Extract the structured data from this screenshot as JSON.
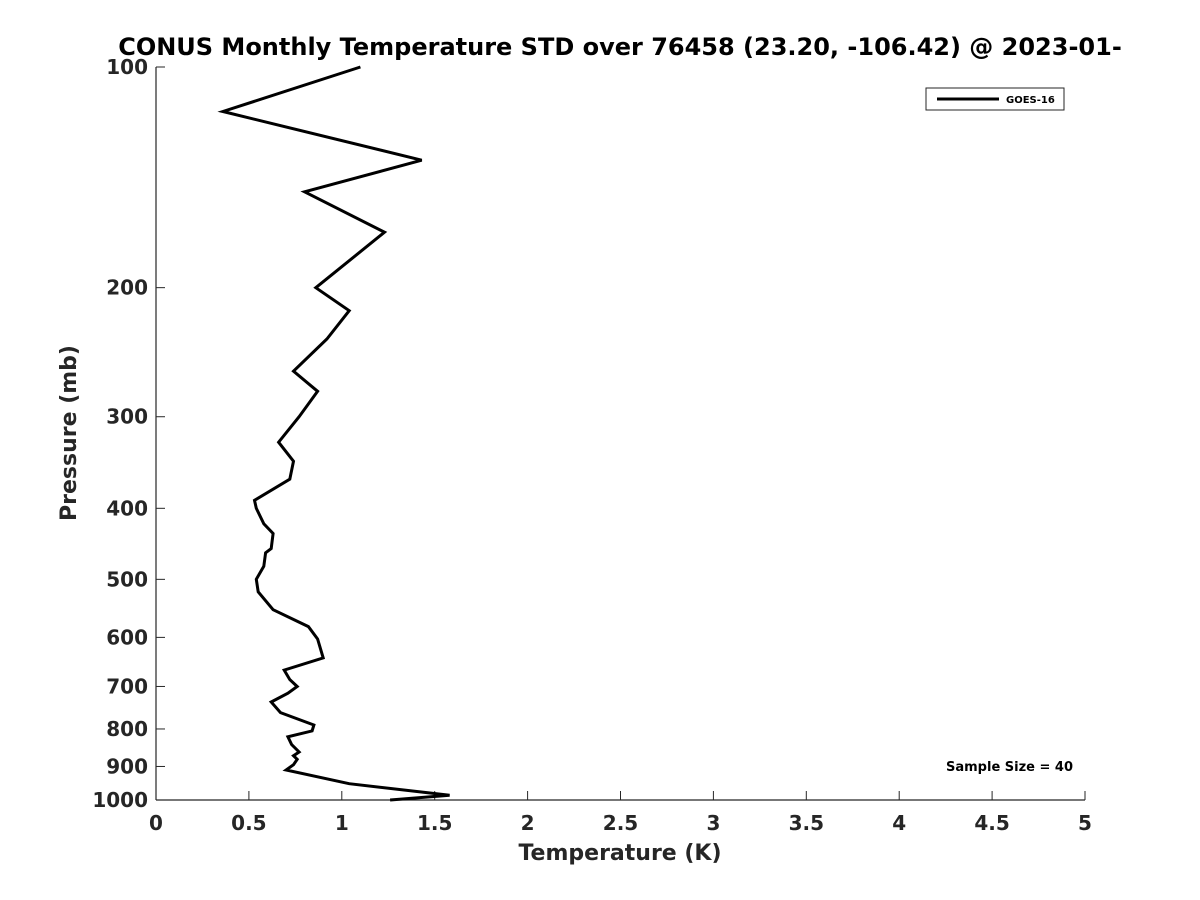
{
  "chart_data": {
    "type": "line",
    "title": "CONUS Monthly Temperature STD over 76458 (23.20, -106.42) @ 2023-01-",
    "xlabel": "Temperature (K)",
    "ylabel": "Pressure (mb)",
    "xlim": [
      0,
      5
    ],
    "ylim": [
      100,
      1000
    ],
    "y_scale": "log",
    "y_reversed": true,
    "xticks": [
      0,
      0.5,
      1,
      1.5,
      2,
      2.5,
      3,
      3.5,
      4,
      4.5,
      5
    ],
    "xtick_labels": [
      "0",
      "0.5",
      "1",
      "1.5",
      "2",
      "2.5",
      "3",
      "3.5",
      "4",
      "4.5",
      "5"
    ],
    "yticks": [
      100,
      200,
      300,
      400,
      500,
      600,
      700,
      800,
      900,
      1000
    ],
    "ytick_labels": [
      "100",
      "200",
      "300",
      "400",
      "500",
      "600",
      "700",
      "800",
      "900",
      "1000"
    ],
    "legend": {
      "position": "top-right",
      "entries": [
        "GOES-16"
      ]
    },
    "grid": false,
    "annotation": "Sample Size = 40",
    "series": [
      {
        "name": "GOES-16",
        "color": "#000000",
        "points": [
          [
            1.1,
            100
          ],
          [
            0.36,
            115
          ],
          [
            1.43,
            134
          ],
          [
            0.8,
            148
          ],
          [
            1.23,
            168
          ],
          [
            0.86,
            200
          ],
          [
            1.04,
            215
          ],
          [
            0.92,
            235
          ],
          [
            0.74,
            260
          ],
          [
            0.87,
            277
          ],
          [
            0.77,
            300
          ],
          [
            0.66,
            325
          ],
          [
            0.74,
            345
          ],
          [
            0.72,
            365
          ],
          [
            0.53,
            390
          ],
          [
            0.54,
            400
          ],
          [
            0.58,
            420
          ],
          [
            0.63,
            433
          ],
          [
            0.62,
            454
          ],
          [
            0.59,
            460
          ],
          [
            0.58,
            480
          ],
          [
            0.54,
            500
          ],
          [
            0.55,
            520
          ],
          [
            0.63,
            550
          ],
          [
            0.82,
            580
          ],
          [
            0.87,
            603
          ],
          [
            0.9,
            640
          ],
          [
            0.69,
            665
          ],
          [
            0.72,
            685
          ],
          [
            0.76,
            700
          ],
          [
            0.71,
            715
          ],
          [
            0.62,
            735
          ],
          [
            0.67,
            760
          ],
          [
            0.85,
            790
          ],
          [
            0.84,
            805
          ],
          [
            0.71,
            820
          ],
          [
            0.73,
            840
          ],
          [
            0.77,
            860
          ],
          [
            0.74,
            870
          ],
          [
            0.76,
            880
          ],
          [
            0.74,
            895
          ],
          [
            0.7,
            910
          ],
          [
            1.04,
            950
          ],
          [
            1.58,
            985
          ],
          [
            1.26,
            1000
          ]
        ]
      }
    ]
  }
}
